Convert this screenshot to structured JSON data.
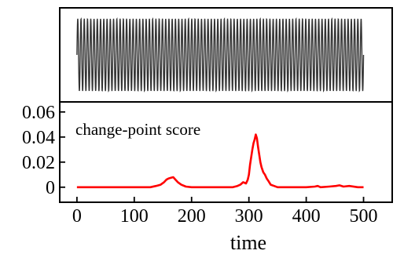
{
  "chart_data": [
    {
      "type": "line",
      "panel": "top",
      "title": "",
      "xlabel": "",
      "ylabel": "",
      "xlim": [
        -30,
        550
      ],
      "ylim": [
        -1.3,
        1.3
      ],
      "grid": false,
      "legend": "none",
      "yticks_visible": false,
      "xticks_visible": false,
      "signal": {
        "description_visible": false,
        "t_start": 0,
        "t_end": 500,
        "cycles": 88,
        "amplitude": 1.0,
        "color": "#333333"
      }
    },
    {
      "type": "line",
      "panel": "bottom",
      "title": "",
      "xlabel": "time",
      "ylabel": "",
      "xlim": [
        -30,
        550
      ],
      "ylim": [
        -0.012,
        0.068
      ],
      "grid": false,
      "legend": "none",
      "annotation": "change-point score",
      "xticks": [
        0,
        100,
        200,
        300,
        400,
        500
      ],
      "yticks": [
        0,
        0.02,
        0.04,
        0.06
      ],
      "xtick_labels": [
        "0",
        "100",
        "200",
        "300",
        "400",
        "500"
      ],
      "ytick_labels": [
        "0",
        "0.02",
        "0.04",
        "0.06"
      ],
      "series": [
        {
          "color": "#ff0000",
          "x": [
            0,
            50,
            100,
            128,
            138,
            146,
            152,
            156,
            160,
            164,
            168,
            172,
            176,
            182,
            190,
            200,
            250,
            272,
            280,
            285,
            290,
            295,
            298,
            300,
            302,
            304,
            306,
            308,
            310,
            312,
            314,
            316,
            318,
            320,
            322,
            325,
            328,
            331,
            334,
            338,
            344,
            350,
            400,
            415,
            420,
            425,
            440,
            452,
            458,
            465,
            475,
            490,
            500
          ],
          "y": [
            0,
            0,
            0,
            0,
            0.001,
            0.002,
            0.004,
            0.006,
            0.007,
            0.0075,
            0.008,
            0.006,
            0.004,
            0.002,
            0.0005,
            0,
            0,
            0,
            0.001,
            0.002,
            0.004,
            0.003,
            0.006,
            0.01,
            0.018,
            0.024,
            0.03,
            0.035,
            0.038,
            0.042,
            0.039,
            0.032,
            0.026,
            0.02,
            0.016,
            0.012,
            0.01,
            0.007,
            0.005,
            0.002,
            0.001,
            0,
            0,
            0.0005,
            0.001,
            0,
            0.0005,
            0.001,
            0.0015,
            0.0005,
            0.001,
            0,
            0
          ]
        }
      ]
    }
  ]
}
